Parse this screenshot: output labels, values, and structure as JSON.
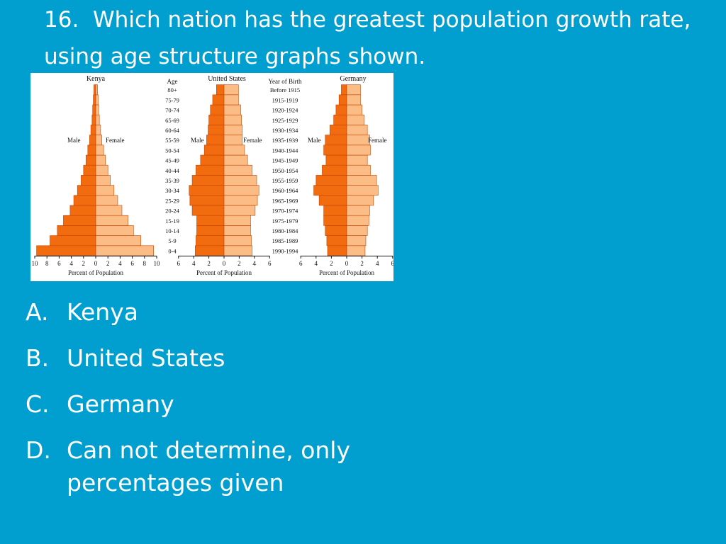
{
  "question": {
    "number": "16.",
    "text": "Which nation has the greatest population growth rate, using age structure graphs shown."
  },
  "colors": {
    "background": "#009fcf",
    "male_bar": "#f26b0f",
    "female_bar": "#fbbd85",
    "bar_outline": "#c44400"
  },
  "chart_data": [
    {
      "type": "bar",
      "orientation": "horizontal-mirrored",
      "title": "Kenya",
      "categories": [
        "0-4",
        "5-9",
        "10-14",
        "15-19",
        "20-24",
        "25-29",
        "30-34",
        "35-39",
        "40-44",
        "45-49",
        "50-54",
        "55-59",
        "60-64",
        "65-69",
        "70-74",
        "75-79",
        "80+"
      ],
      "category_header": "Age",
      "series": [
        {
          "name": "Male",
          "values": [
            9.7,
            7.5,
            6.3,
            5.3,
            4.2,
            3.6,
            3.0,
            2.4,
            2.0,
            1.6,
            1.3,
            1.0,
            0.8,
            0.6,
            0.5,
            0.4,
            0.3
          ]
        },
        {
          "name": "Female",
          "values": [
            9.5,
            7.4,
            6.2,
            5.3,
            4.3,
            3.6,
            3.0,
            2.4,
            2.0,
            1.6,
            1.3,
            1.0,
            0.8,
            0.6,
            0.5,
            0.4,
            0.3
          ]
        }
      ],
      "xlim": [
        -10,
        10
      ],
      "xticks": [
        "10",
        "8",
        "6",
        "4",
        "2",
        "0",
        "2",
        "4",
        "6",
        "8",
        "10"
      ],
      "xlabel": "Percent of Population"
    },
    {
      "type": "bar",
      "orientation": "horizontal-mirrored",
      "title": "United States",
      "categories": [
        "1990-1994",
        "1985-1989",
        "1980-1984",
        "1975-1979",
        "1970-1974",
        "1965-1969",
        "1960-1964",
        "1955-1959",
        "1950-1954",
        "1945-1949",
        "1940-1944",
        "1935-1939",
        "1930-1934",
        "1925-1929",
        "1920-1924",
        "1915-1919",
        "Before 1915"
      ],
      "category_header": "Year of Birth",
      "series": [
        {
          "name": "Male",
          "values": [
            3.8,
            3.7,
            3.6,
            3.6,
            4.2,
            4.5,
            4.6,
            4.2,
            3.7,
            3.1,
            2.6,
            2.3,
            2.1,
            2.0,
            1.8,
            1.5,
            1.0
          ]
        },
        {
          "name": "Female",
          "values": [
            3.7,
            3.6,
            3.5,
            3.5,
            4.1,
            4.4,
            4.6,
            4.3,
            3.7,
            3.1,
            2.7,
            2.4,
            2.4,
            2.3,
            2.2,
            1.9,
            1.9
          ]
        }
      ],
      "xlim": [
        -6,
        6
      ],
      "xticks": [
        "6",
        "4",
        "2",
        "0",
        "2",
        "4",
        "6"
      ],
      "xlabel": "Percent of Population"
    },
    {
      "type": "bar",
      "orientation": "horizontal-mirrored",
      "title": "Germany",
      "series": [
        {
          "name": "Male",
          "values": [
            2.5,
            2.6,
            2.8,
            3.0,
            3.0,
            3.6,
            4.3,
            4.0,
            3.2,
            2.7,
            3.0,
            2.8,
            2.2,
            1.7,
            1.4,
            1.0,
            0.7
          ]
        },
        {
          "name": "Female",
          "values": [
            2.4,
            2.5,
            2.7,
            2.9,
            3.0,
            3.5,
            4.1,
            3.9,
            3.1,
            2.7,
            3.1,
            3.0,
            2.7,
            2.3,
            2.0,
            1.8,
            1.8
          ]
        }
      ],
      "xlim": [
        -6,
        6
      ],
      "xticks": [
        "6",
        "4",
        "2",
        "0",
        "2",
        "4",
        "6"
      ],
      "xlabel": "Percent of Population"
    }
  ],
  "answers": [
    {
      "letter": "A.",
      "text": "Kenya"
    },
    {
      "letter": "B.",
      "text": "United States"
    },
    {
      "letter": "C.",
      "text": "Germany"
    },
    {
      "letter": "D.",
      "text": "Can not determine, only percentages given"
    }
  ]
}
